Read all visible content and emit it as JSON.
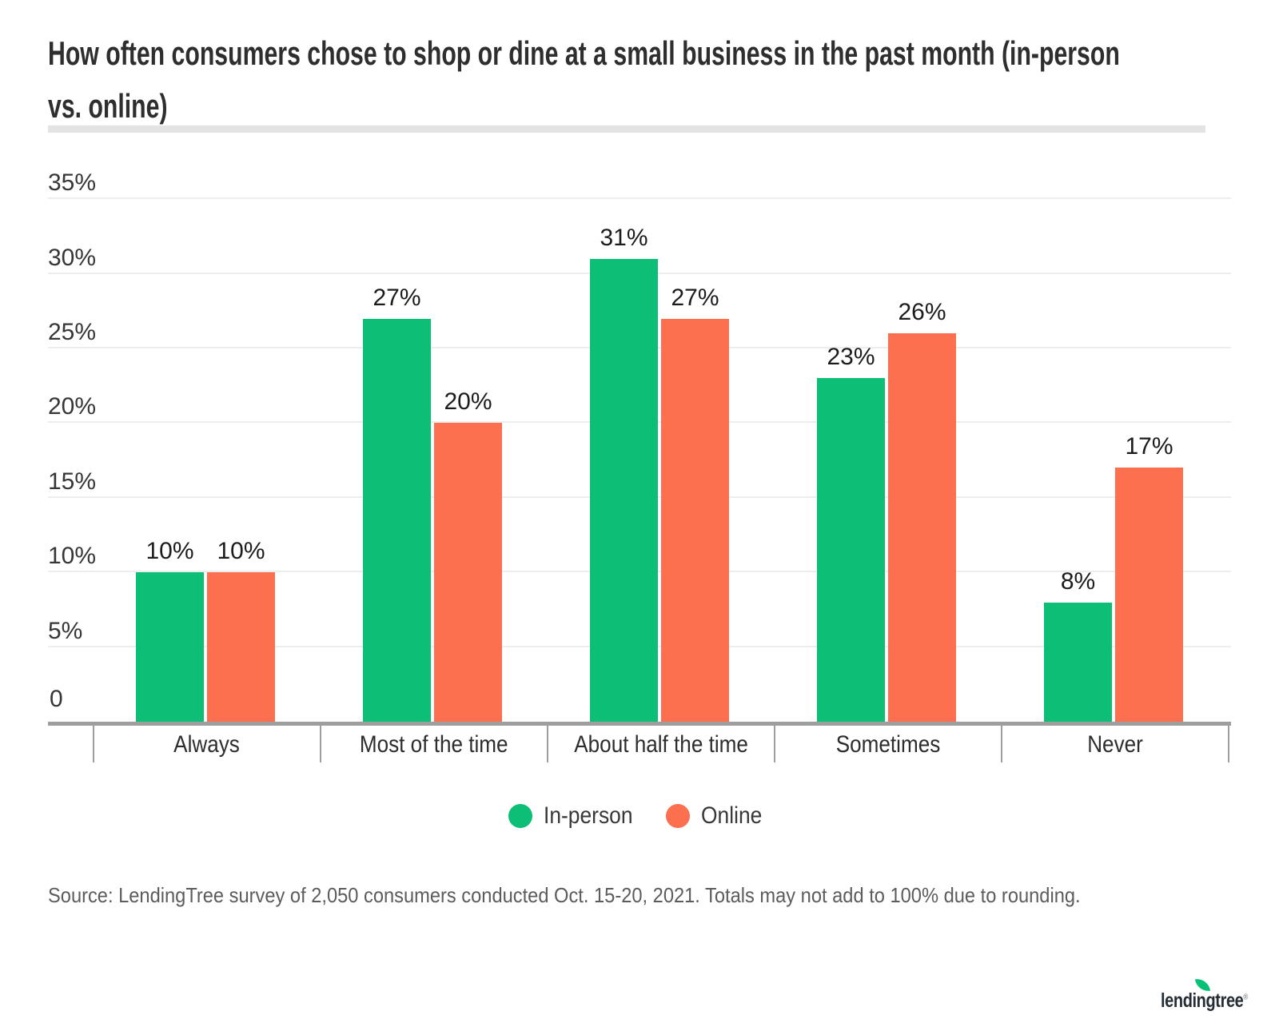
{
  "title": {
    "line1": "How often consumers chose to shop or dine at a small business in the past month (in-person",
    "line2": "vs. online)"
  },
  "y_axis": {
    "ticks": [
      {
        "value": 35,
        "label": "35%"
      },
      {
        "value": 30,
        "label": "30%"
      },
      {
        "value": 25,
        "label": "25%"
      },
      {
        "value": 20,
        "label": "20%"
      },
      {
        "value": 15,
        "label": "15%"
      },
      {
        "value": 10,
        "label": "10%"
      },
      {
        "value": 5,
        "label": "5%"
      }
    ],
    "zero_label": "0",
    "max": 35,
    "step": 5
  },
  "chart_data": {
    "type": "bar",
    "title": "How often consumers chose to shop or dine at a small business in the past month (in-person vs. online)",
    "categories": [
      "Always",
      "Most of the time",
      "About half the time",
      "Sometimes",
      "Never"
    ],
    "series": [
      {
        "name": "In-person",
        "color": "#0dbe76",
        "values": [
          10,
          27,
          31,
          23,
          8
        ],
        "labels": [
          "10%",
          "27%",
          "31%",
          "23%",
          "8%"
        ]
      },
      {
        "name": "Online",
        "color": "#fc6f4f",
        "values": [
          10,
          20,
          27,
          26,
          17
        ],
        "labels": [
          "10%",
          "20%",
          "27%",
          "26%",
          "17%"
        ]
      }
    ],
    "xlabel": "",
    "ylabel": "",
    "ylim": [
      0,
      35
    ],
    "grid": true,
    "legend_position": "bottom",
    "value_suffix": "%"
  },
  "source": "Source: LendingTree survey of 2,050 consumers conducted Oct. 15-20, 2021. Totals may not add to 100% due to rounding.",
  "logo": {
    "text": "lendingtree",
    "registered_mark": "®"
  },
  "colors": {
    "in_person": "#0dbe76",
    "online": "#fc6f4f",
    "gridline": "#ededed",
    "axis": "#9e9e9e",
    "divider": "#e3e3e3",
    "title_text": "#2e2e2e",
    "value_label_text": "#1c1c1c",
    "category_text": "#2d2d2d",
    "source_text": "#5c5c5c",
    "leaf_green": "#08c177",
    "logo_text": "#242d35"
  }
}
